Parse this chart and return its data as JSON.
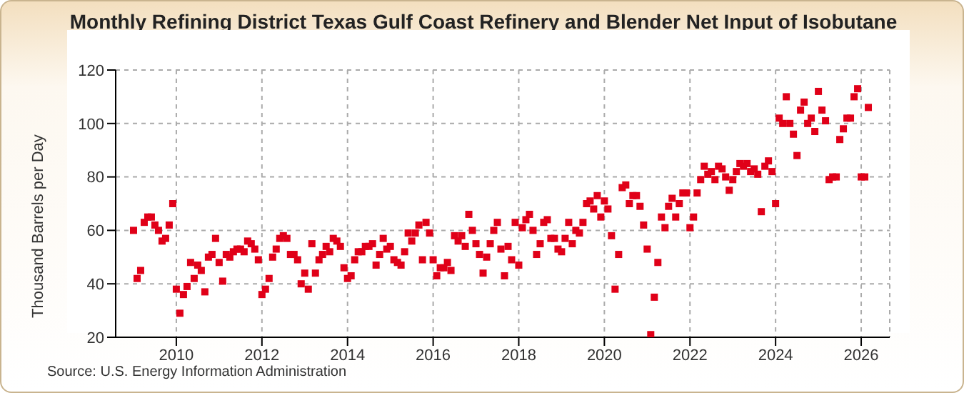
{
  "chart_data": {
    "type": "scatter",
    "title": "Monthly Refining District Texas Gulf Coast Refinery and Blender Net Input of Isobutane",
    "ylabel": "Thousand Barrels per Day",
    "annotations": [
      "Source: U.S. Energy Information Administration"
    ],
    "x": [
      "2009-01",
      "2009-02",
      "2009-03",
      "2009-04",
      "2009-05",
      "2009-06",
      "2009-07",
      "2009-08",
      "2009-09",
      "2009-10",
      "2009-11",
      "2009-12",
      "2010-01",
      "2010-02",
      "2010-03",
      "2010-04",
      "2010-05",
      "2010-06",
      "2010-07",
      "2010-08",
      "2010-09",
      "2010-10",
      "2010-11",
      "2010-12",
      "2011-01",
      "2011-02",
      "2011-03",
      "2011-04",
      "2011-05",
      "2011-06",
      "2011-07",
      "2011-08",
      "2011-09",
      "2011-10",
      "2011-11",
      "2011-12",
      "2012-01",
      "2012-02",
      "2012-03",
      "2012-04",
      "2012-05",
      "2012-06",
      "2012-07",
      "2012-08",
      "2012-09",
      "2012-10",
      "2012-11",
      "2012-12",
      "2013-01",
      "2013-02",
      "2013-03",
      "2013-04",
      "2013-05",
      "2013-06",
      "2013-07",
      "2013-08",
      "2013-09",
      "2013-10",
      "2013-11",
      "2013-12",
      "2014-01",
      "2014-02",
      "2014-03",
      "2014-04",
      "2014-05",
      "2014-06",
      "2014-07",
      "2014-08",
      "2014-09",
      "2014-10",
      "2014-11",
      "2014-12",
      "2015-01",
      "2015-02",
      "2015-03",
      "2015-04",
      "2015-05",
      "2015-06",
      "2015-07",
      "2015-08",
      "2015-09",
      "2015-10",
      "2015-11",
      "2015-12",
      "2016-01",
      "2016-02",
      "2016-03",
      "2016-04",
      "2016-05",
      "2016-06",
      "2016-07",
      "2016-08",
      "2016-09",
      "2016-10",
      "2016-11",
      "2016-12",
      "2017-01",
      "2017-02",
      "2017-03",
      "2017-04",
      "2017-05",
      "2017-06",
      "2017-07",
      "2017-08",
      "2017-09",
      "2017-10",
      "2017-11",
      "2017-12",
      "2018-01",
      "2018-02",
      "2018-03",
      "2018-04",
      "2018-05",
      "2018-06",
      "2018-07",
      "2018-08",
      "2018-09",
      "2018-10",
      "2018-11",
      "2018-12",
      "2019-01",
      "2019-02",
      "2019-03",
      "2019-04",
      "2019-05",
      "2019-06",
      "2019-07",
      "2019-08",
      "2019-09",
      "2019-10",
      "2019-11",
      "2019-12",
      "2020-01",
      "2020-02",
      "2020-03",
      "2020-04",
      "2020-05",
      "2020-06",
      "2020-07",
      "2020-08",
      "2020-09",
      "2020-10",
      "2020-11",
      "2020-12",
      "2021-01",
      "2021-02",
      "2021-03",
      "2021-04",
      "2021-05",
      "2021-06",
      "2021-07",
      "2021-08",
      "2021-09",
      "2021-10",
      "2021-11",
      "2021-12",
      "2022-01",
      "2022-02",
      "2022-03",
      "2022-04",
      "2022-05",
      "2022-06",
      "2022-07",
      "2022-08",
      "2022-09",
      "2022-10",
      "2022-11",
      "2022-12",
      "2023-01",
      "2023-02",
      "2023-03",
      "2023-04",
      "2023-05",
      "2023-06",
      "2023-07",
      "2023-08",
      "2023-09",
      "2023-10",
      "2023-11",
      "2023-12",
      "2024-01",
      "2024-02",
      "2024-03",
      "2024-04",
      "2024-05",
      "2024-06",
      "2024-07",
      "2024-08",
      "2024-09",
      "2024-10",
      "2024-11",
      "2024-12",
      "2025-01",
      "2025-02",
      "2025-03",
      "2025-04",
      "2025-05",
      "2025-06",
      "2025-07",
      "2025-08",
      "2025-09",
      "2025-10",
      "2025-11",
      "2025-12",
      "2026-01",
      "2026-02",
      "2026-03"
    ],
    "xlim": [
      "2008-08",
      "2026-09"
    ],
    "xticks": [
      "2010",
      "2012",
      "2014",
      "2016",
      "2018",
      "2020",
      "2022",
      "2024",
      "2026"
    ],
    "ylim": [
      20,
      120
    ],
    "yticks": [
      20,
      40,
      60,
      80,
      100,
      120
    ],
    "grid": true,
    "marker": "square",
    "series": [
      {
        "color": "#e00018",
        "values": [
          60,
          42,
          45,
          63,
          65,
          65,
          62,
          60,
          56,
          57,
          62,
          70,
          38,
          29,
          36,
          39,
          48,
          42,
          47,
          45,
          37,
          50,
          51,
          57,
          48,
          41,
          51,
          50,
          52,
          53,
          53,
          52,
          56,
          55,
          53,
          49,
          36,
          38,
          42,
          50,
          53,
          57,
          58,
          57,
          51,
          51,
          49,
          40,
          44,
          38,
          55,
          44,
          49,
          51,
          54,
          52,
          57,
          56,
          54,
          46,
          42,
          43,
          49,
          52,
          52,
          54,
          54,
          55,
          47,
          51,
          57,
          53,
          54,
          49,
          48,
          47,
          52,
          59,
          56,
          59,
          62,
          49,
          63,
          59,
          49,
          43,
          46,
          46,
          48,
          45,
          58,
          56,
          58,
          54,
          66,
          60,
          55,
          51,
          44,
          50,
          55,
          60,
          63,
          53,
          43,
          54,
          49,
          63,
          47,
          61,
          64,
          66,
          60,
          51,
          55,
          63,
          64,
          57,
          57,
          53,
          52,
          57,
          63,
          55,
          60,
          59,
          63,
          70,
          71,
          68,
          73,
          65,
          71,
          68,
          58,
          38,
          51,
          76,
          77,
          70,
          73,
          73,
          69,
          62,
          53,
          21,
          35,
          48,
          65,
          61,
          69,
          72,
          65,
          70,
          74,
          74,
          61,
          65,
          74,
          79,
          84,
          81,
          82,
          79,
          84,
          83,
          80,
          75,
          79,
          82,
          85,
          84,
          85,
          82,
          83,
          81,
          67,
          84,
          86,
          82,
          70,
          102,
          100,
          110,
          100,
          96,
          88,
          105,
          108,
          100,
          102,
          97,
          112,
          105,
          101,
          79,
          80,
          80,
          94,
          98,
          102,
          102,
          110,
          113,
          80,
          80,
          106
        ]
      }
    ]
  }
}
